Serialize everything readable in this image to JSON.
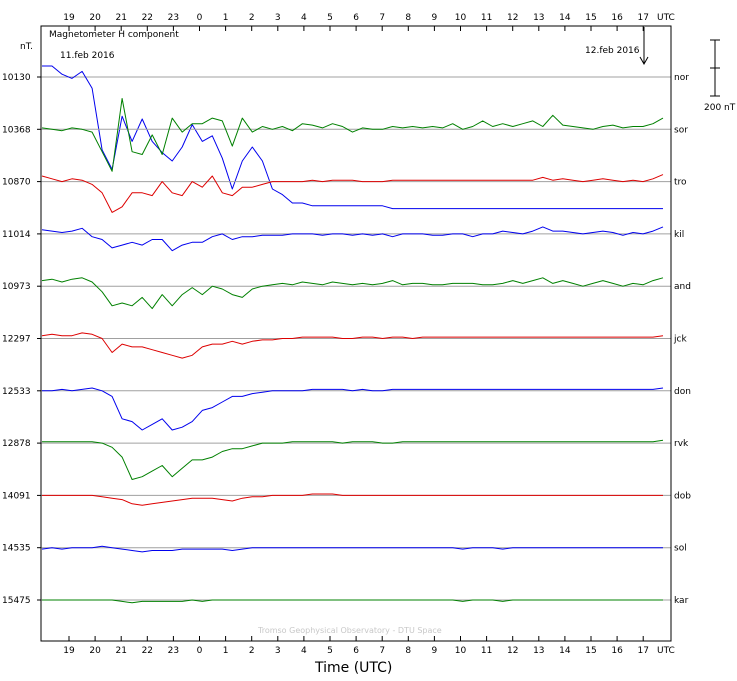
{
  "chart_data": {
    "type": "line",
    "title": "Magnetometer H component",
    "unit_label": "nT.",
    "xlabel": "Time (UTC)",
    "x_axis_unit": "UTC",
    "x_ticks": [
      "19",
      "20",
      "21",
      "22",
      "23",
      "0",
      "1",
      "2",
      "3",
      "4",
      "5",
      "6",
      "7",
      "8",
      "9",
      "10",
      "11",
      "12",
      "13",
      "14",
      "15",
      "16",
      "17"
    ],
    "start_date_label": "11.feb 2016",
    "end_date_label": "12.feb 2016",
    "scale_bar_label": "200 nT",
    "watermark": "Tromso Geophysical Observatory - DTU Space",
    "grid": false,
    "series_colors": [
      "#0000ee",
      "#008000",
      "#dd0000"
    ],
    "series": [
      {
        "name": "nor",
        "baseline": "10130",
        "color": "#0000ee",
        "values": [
          60,
          40,
          10,
          -5,
          20,
          -40,
          -260,
          -330,
          -140,
          -230,
          -150,
          -230,
          -270,
          -300,
          -250,
          -170,
          -230,
          -210,
          -290,
          -400,
          -300,
          -250,
          -300,
          -400,
          -420,
          -450,
          -450,
          -460,
          -460,
          -460,
          -460,
          -460,
          -460,
          -460,
          -460,
          -470,
          -470,
          -470,
          -470,
          -470,
          -470,
          -470,
          -470,
          -470,
          -470,
          -470,
          -470,
          -470,
          -470,
          -470,
          -470,
          -470,
          -470,
          -470,
          -470,
          -470,
          -470,
          -470,
          -470,
          -470,
          -470,
          -470,
          -470
        ]
      },
      {
        "name": "sor",
        "baseline": "10368",
        "color": "#008000",
        "values": [
          5,
          0,
          -5,
          5,
          0,
          -10,
          -80,
          -150,
          110,
          -80,
          -90,
          -20,
          -90,
          40,
          -10,
          20,
          20,
          40,
          30,
          -60,
          40,
          -10,
          10,
          0,
          10,
          -5,
          20,
          15,
          5,
          20,
          10,
          -10,
          5,
          0,
          0,
          10,
          5,
          10,
          5,
          10,
          5,
          20,
          0,
          10,
          30,
          10,
          20,
          10,
          20,
          30,
          10,
          50,
          15,
          10,
          5,
          0,
          10,
          15,
          5,
          10,
          10,
          20,
          40
        ]
      },
      {
        "name": "tro",
        "baseline": "10870",
        "color": "#dd0000",
        "values": [
          20,
          10,
          0,
          10,
          5,
          -10,
          -40,
          -110,
          -90,
          -40,
          -40,
          -50,
          0,
          -40,
          -50,
          0,
          -20,
          20,
          -40,
          -50,
          -20,
          -20,
          -10,
          0,
          0,
          0,
          0,
          5,
          0,
          5,
          5,
          5,
          0,
          0,
          0,
          5,
          5,
          5,
          5,
          5,
          5,
          5,
          5,
          5,
          5,
          5,
          5,
          5,
          5,
          5,
          15,
          5,
          10,
          5,
          0,
          5,
          10,
          5,
          0,
          5,
          0,
          10,
          25
        ]
      },
      {
        "name": "kil",
        "baseline": "11014",
        "color": "#0000ee",
        "values": [
          15,
          10,
          5,
          10,
          20,
          -10,
          -20,
          -50,
          -40,
          -30,
          -40,
          -20,
          -20,
          -60,
          -40,
          -30,
          -30,
          -10,
          0,
          -20,
          -10,
          -10,
          -5,
          -5,
          -5,
          0,
          0,
          0,
          -5,
          0,
          0,
          -5,
          0,
          -5,
          0,
          -10,
          0,
          0,
          0,
          -5,
          -5,
          0,
          0,
          -10,
          0,
          0,
          10,
          5,
          0,
          10,
          25,
          10,
          10,
          5,
          0,
          5,
          10,
          5,
          -5,
          5,
          0,
          10,
          25
        ]
      },
      {
        "name": "and",
        "baseline": "10973",
        "color": "#008000",
        "values": [
          20,
          25,
          15,
          25,
          30,
          15,
          -20,
          -70,
          -60,
          -70,
          -40,
          -80,
          -30,
          -70,
          -30,
          -5,
          -30,
          0,
          -10,
          -30,
          -40,
          -10,
          0,
          5,
          10,
          5,
          15,
          10,
          5,
          15,
          10,
          5,
          10,
          5,
          10,
          20,
          5,
          10,
          10,
          5,
          5,
          10,
          10,
          10,
          5,
          5,
          10,
          20,
          10,
          20,
          30,
          10,
          20,
          10,
          0,
          10,
          20,
          10,
          0,
          10,
          5,
          20,
          30
        ]
      },
      {
        "name": "jck",
        "baseline": "12297",
        "color": "#dd0000",
        "values": [
          10,
          15,
          10,
          10,
          20,
          15,
          0,
          -50,
          -20,
          -30,
          -30,
          -40,
          -50,
          -60,
          -70,
          -60,
          -30,
          -20,
          -20,
          -10,
          -20,
          -10,
          -5,
          -5,
          0,
          0,
          5,
          5,
          5,
          5,
          0,
          0,
          5,
          5,
          0,
          5,
          5,
          0,
          5,
          5,
          5,
          5,
          5,
          5,
          5,
          5,
          5,
          5,
          5,
          5,
          5,
          5,
          5,
          5,
          5,
          5,
          5,
          5,
          5,
          5,
          5,
          5,
          10
        ]
      },
      {
        "name": "don",
        "baseline": "12533",
        "color": "#0000ee",
        "values": [
          0,
          0,
          5,
          0,
          5,
          10,
          0,
          -20,
          -100,
          -110,
          -140,
          -120,
          -100,
          -140,
          -130,
          -110,
          -70,
          -60,
          -40,
          -20,
          -20,
          -10,
          -5,
          0,
          0,
          0,
          0,
          5,
          5,
          5,
          5,
          0,
          5,
          0,
          0,
          5,
          5,
          5,
          5,
          5,
          5,
          5,
          5,
          5,
          5,
          5,
          5,
          5,
          5,
          5,
          5,
          5,
          5,
          5,
          5,
          5,
          5,
          5,
          5,
          5,
          5,
          5,
          10
        ]
      },
      {
        "name": "rvk",
        "baseline": "12878",
        "color": "#008000",
        "values": [
          5,
          5,
          5,
          5,
          5,
          5,
          0,
          -15,
          -50,
          -130,
          -120,
          -100,
          -80,
          -120,
          -90,
          -60,
          -60,
          -50,
          -30,
          -20,
          -20,
          -10,
          0,
          0,
          0,
          5,
          5,
          5,
          5,
          5,
          0,
          5,
          5,
          5,
          0,
          0,
          5,
          5,
          5,
          5,
          5,
          5,
          5,
          5,
          5,
          5,
          5,
          5,
          5,
          5,
          5,
          5,
          5,
          5,
          5,
          5,
          5,
          5,
          5,
          5,
          5,
          5,
          10
        ]
      },
      {
        "name": "dob",
        "baseline": "14091",
        "color": "#dd0000",
        "values": [
          0,
          0,
          0,
          0,
          0,
          0,
          -5,
          -10,
          -15,
          -30,
          -35,
          -30,
          -25,
          -20,
          -15,
          -10,
          -10,
          -10,
          -15,
          -20,
          -10,
          -5,
          -5,
          0,
          0,
          0,
          0,
          5,
          5,
          5,
          0,
          0,
          0,
          0,
          0,
          0,
          0,
          0,
          0,
          0,
          0,
          0,
          0,
          0,
          0,
          0,
          0,
          0,
          0,
          0,
          0,
          0,
          0,
          0,
          0,
          0,
          0,
          0,
          0,
          0,
          0,
          0,
          0
        ]
      },
      {
        "name": "sol",
        "baseline": "14535",
        "color": "#0000ee",
        "values": [
          -5,
          0,
          -5,
          0,
          0,
          0,
          5,
          0,
          -5,
          -10,
          -15,
          -10,
          -10,
          -10,
          -5,
          -5,
          -5,
          -5,
          -5,
          -10,
          -5,
          0,
          0,
          0,
          0,
          0,
          0,
          0,
          0,
          0,
          0,
          0,
          0,
          0,
          0,
          0,
          0,
          0,
          0,
          0,
          0,
          0,
          -5,
          0,
          0,
          0,
          -5,
          0,
          0,
          0,
          0,
          0,
          0,
          0,
          0,
          0,
          0,
          0,
          0,
          0,
          0,
          0,
          0
        ]
      },
      {
        "name": "kar",
        "baseline": "15475",
        "color": "#008000",
        "values": [
          0,
          0,
          0,
          0,
          0,
          0,
          0,
          0,
          -5,
          -10,
          -5,
          -5,
          -5,
          -5,
          -5,
          0,
          -5,
          0,
          0,
          0,
          0,
          0,
          0,
          0,
          0,
          0,
          0,
          0,
          0,
          0,
          0,
          0,
          0,
          0,
          0,
          0,
          0,
          0,
          0,
          0,
          0,
          0,
          -5,
          0,
          0,
          0,
          -5,
          0,
          0,
          0,
          0,
          0,
          0,
          0,
          0,
          0,
          0,
          0,
          0,
          0,
          0,
          0,
          0
        ]
      }
    ]
  }
}
